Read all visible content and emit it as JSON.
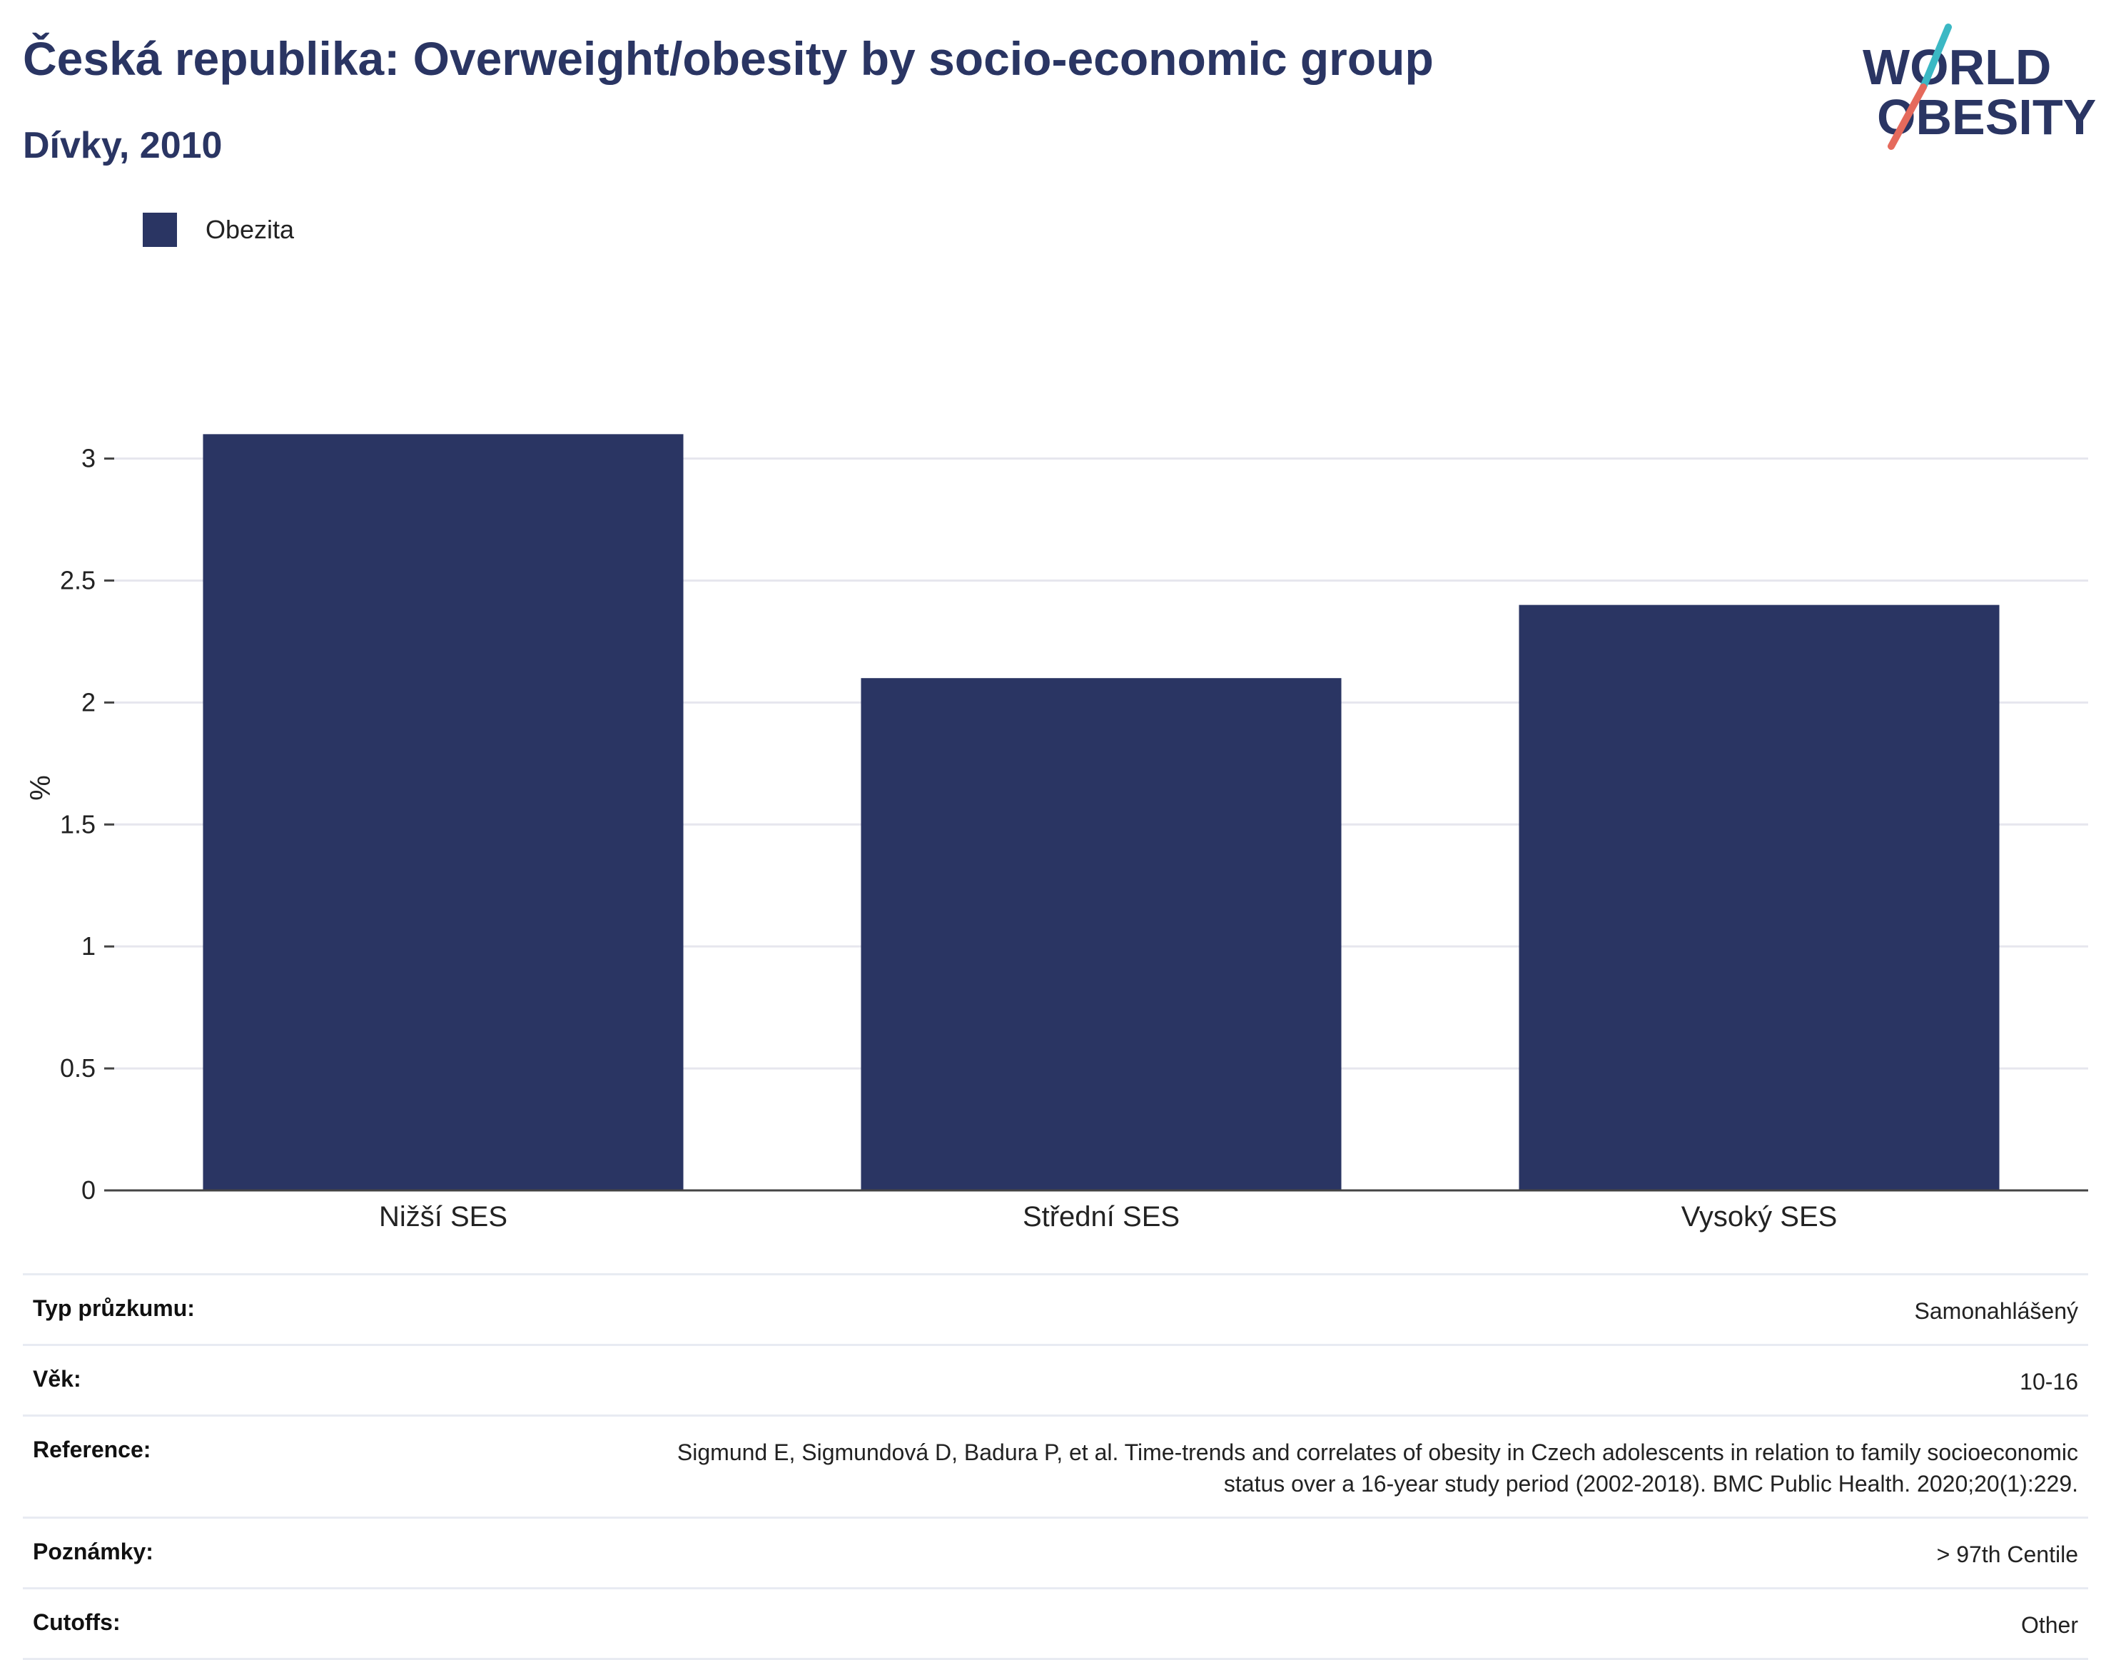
{
  "header": {
    "title": "Česká republika: Overweight/obesity by socio-economic group",
    "subtitle": "Dívky, 2010"
  },
  "logo": {
    "line1": "WORLD",
    "line2": "OBESITY",
    "colors": {
      "text": "#2a3563",
      "slash_teal": "#3bb8c4",
      "slash_coral": "#e56a5c"
    }
  },
  "legend": {
    "items": [
      {
        "label": "Obezita",
        "color": "#2a3563"
      }
    ]
  },
  "chart_data": {
    "type": "bar",
    "categories": [
      "Nižší SES",
      "Střední SES",
      "Vysoký SES"
    ],
    "series": [
      {
        "name": "Obezita",
        "values": [
          3.1,
          2.1,
          2.4
        ],
        "color": "#2a3563"
      }
    ],
    "ylabel": "%",
    "ylim": [
      0,
      3.3
    ],
    "yticks": [
      0,
      0.5,
      1,
      1.5,
      2,
      2.5,
      3
    ],
    "yticklabels": [
      "0",
      "0.5",
      "1",
      "1.5",
      "2",
      "2.5",
      "3"
    ],
    "grid": true,
    "legend_position": "top-left"
  },
  "meta": {
    "rows": [
      {
        "key": "Typ průzkumu:",
        "value": "Samonahlášený"
      },
      {
        "key": "Věk:",
        "value": "10-16"
      },
      {
        "key": "Reference:",
        "value": "Sigmund E, Sigmundová D, Badura P, et al. Time-trends and correlates of obesity in Czech adolescents in relation to family socioeconomic status over a 16-year study period (2002-2018). BMC Public Health. 2020;20(1):229."
      },
      {
        "key": "Poznámky:",
        "value": "> 97th Centile"
      },
      {
        "key": "Cutoffs:",
        "value": "Other"
      }
    ]
  }
}
